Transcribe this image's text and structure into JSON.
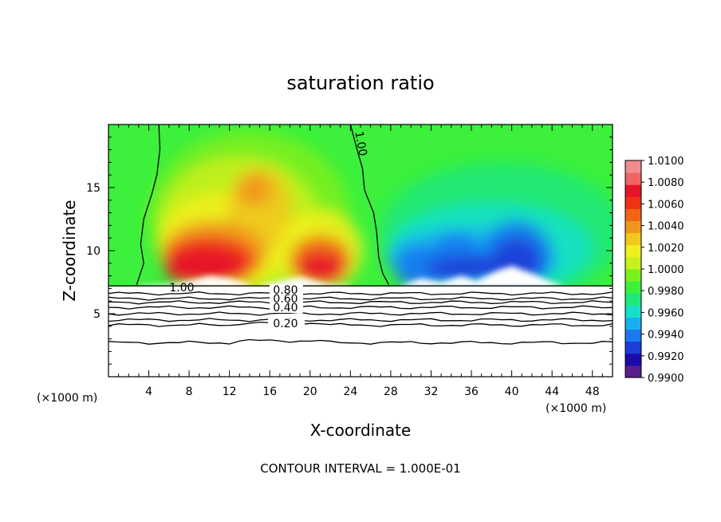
{
  "chart_data": {
    "type": "heatmap",
    "title": "saturation ratio",
    "xlabel": "X-coordinate",
    "ylabel": "Z-coordinate",
    "x_unit_left": "(×1000 m)",
    "x_unit_right": "(×1000 m)",
    "footer": "CONTOUR INTERVAL = 1.000E-01",
    "xlim": [
      0,
      50
    ],
    "ylim": [
      0,
      20
    ],
    "x_ticks": [
      4,
      8,
      12,
      16,
      20,
      24,
      28,
      32,
      36,
      40,
      44,
      48
    ],
    "x_tick_labels": [
      "4",
      "8",
      "12",
      "16",
      "20",
      "24",
      "28",
      "32",
      "36",
      "40",
      "44",
      "48"
    ],
    "y_ticks": [
      5,
      10,
      15
    ],
    "y_tick_labels": [
      "5",
      "10",
      "15"
    ],
    "colorbar": {
      "range": [
        0.99,
        1.01
      ],
      "tick_labels": [
        "1.0100",
        "1.0080",
        "1.0060",
        "1.0040",
        "1.0020",
        "1.0000",
        "0.9980",
        "0.9960",
        "0.9940",
        "0.9920",
        "0.9900"
      ],
      "colors": [
        "#5a1e8c",
        "#1a0aa8",
        "#1e3cd6",
        "#1a78f0",
        "#1ab0f0",
        "#15e0c8",
        "#1ee878",
        "#3cf03c",
        "#7af01e",
        "#c8f01e",
        "#f0f01e",
        "#f0c81e",
        "#f0961e",
        "#f06414",
        "#f03214",
        "#e61428",
        "#f06464",
        "#f08c8c"
      ]
    },
    "contour_labels": [
      "1.00",
      "1.00",
      "0.80",
      "0.60",
      "0.40",
      "0.20"
    ],
    "cloud_base_z": 7.2,
    "cloud_top_z": 20,
    "low_level_contours": [
      {
        "value": 0.8,
        "z": 6.6
      },
      {
        "value": 0.7,
        "z": 6.2
      },
      {
        "value": 0.6,
        "z": 5.9
      },
      {
        "value": 0.5,
        "z": 5.5
      },
      {
        "value": 0.4,
        "z": 5.0
      },
      {
        "value": 0.3,
        "z": 4.5
      },
      {
        "value": 0.2,
        "z": 4.1
      },
      {
        "value": 0.1,
        "z": 2.7
      }
    ],
    "supersaturated_region_x": [
      3,
      27.5
    ],
    "subsaturated_region_x": [
      28,
      50
    ]
  }
}
